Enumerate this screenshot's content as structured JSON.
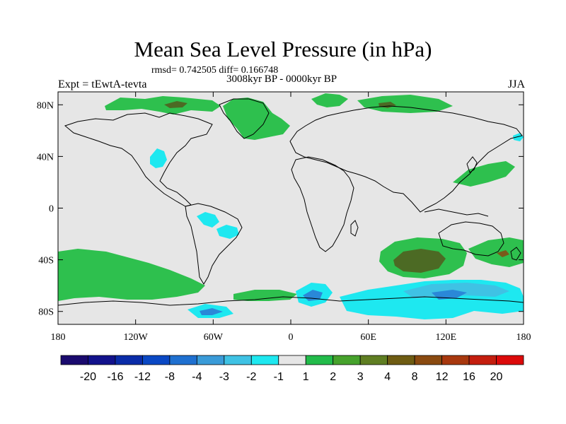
{
  "header": {
    "title": "Mean Sea Level Pressure (in hPa)",
    "stats": "rmsd= 0.742505 diff= 0.166748",
    "period": "3008kyr BP - 0000kyr BP",
    "experiment": "Expt = tEwtA-tevta",
    "season": "JJA"
  },
  "axes": {
    "x_ticks": [
      "180",
      "120W",
      "60W",
      "0",
      "60E",
      "120E",
      "180"
    ],
    "x_values": [
      -180,
      -120,
      -60,
      0,
      60,
      120,
      180
    ],
    "y_ticks": [
      "80N",
      "40N",
      "0",
      "40S",
      "80S"
    ],
    "y_values": [
      80,
      40,
      0,
      -40,
      -80
    ],
    "lon_range": [
      -180,
      180
    ],
    "lat_range": [
      -90,
      90
    ]
  },
  "colorbar": {
    "labels": [
      "-20",
      "-16",
      "-12",
      "-8",
      "-4",
      "-3",
      "-2",
      "-1",
      "1",
      "2",
      "3",
      "4",
      "8",
      "12",
      "16",
      "20"
    ],
    "colors": [
      "#1a0a6e",
      "#12128c",
      "#0a2ca8",
      "#0a48c4",
      "#1f70d0",
      "#3a9bd8",
      "#3fc2e4",
      "#1ee8f0",
      "#e6e6e6",
      "#22bb4a",
      "#46a22c",
      "#5f7e22",
      "#6e5c12",
      "#8a4a10",
      "#a8380e",
      "#c41e0e",
      "#dc0a0a"
    ]
  },
  "colors": {
    "land_sea_bg": "#e6e6e6",
    "coast": "#000000",
    "green": "#2ec04e",
    "darkgreen": "#4c6a24",
    "cyan": "#1ee8f0",
    "lightblue": "#3fc2e4",
    "blue": "#2a88d8",
    "brown": "#7a5a1a"
  }
}
